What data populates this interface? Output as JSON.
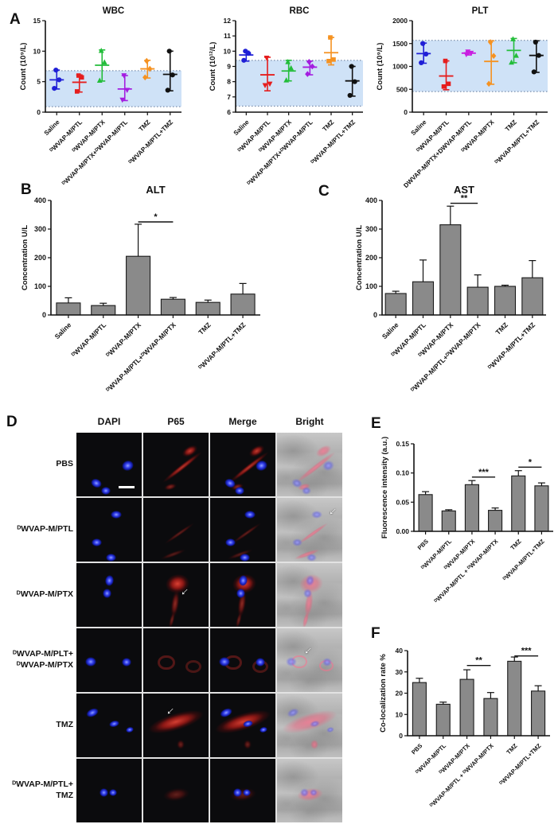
{
  "panels": {
    "A": {
      "letter": "A"
    },
    "B": {
      "letter": "B"
    },
    "C": {
      "letter": "C"
    },
    "D": {
      "letter": "D",
      "col_headers": [
        "DAPI",
        "P65",
        "Merge",
        "Bright"
      ],
      "row_labels": [
        "PBS",
        "ᴰWVAP-M/PTL",
        "ᴰWVAP-M/PTX",
        "ᴰWVAP-M/PLT+\nᴰWVAP-M/PTX",
        "TMZ",
        "ᴰWVAP-M/PTL+\nTMZ"
      ],
      "annotations": {
        "scale_bar": {
          "row": 0,
          "col": 0
        },
        "arrows": [
          {
            "row": 1,
            "col": 3
          },
          {
            "row": 2,
            "col": 1
          },
          {
            "row": 3,
            "col": 3
          },
          {
            "row": 4,
            "col": 1
          }
        ]
      }
    },
    "E": {
      "letter": "E"
    },
    "F": {
      "letter": "F"
    }
  },
  "colors": {
    "band_fill": "#cfe2f7",
    "band_line": "#60789a",
    "bar_fill": "#8a8a8a",
    "bar_stroke": "#1a1a1a",
    "axis": "#111111"
  },
  "chart_data": [
    {
      "panel": "A",
      "type": "scatter",
      "title": "WBC",
      "ylabel": "Count (10⁹/L)",
      "ylim": [
        0,
        15
      ],
      "yticks": [
        0,
        5,
        10,
        15
      ],
      "ytick_labels": [
        "0",
        "5",
        "10",
        "15"
      ],
      "normal_band": [
        0.9,
        6.8
      ],
      "categories": [
        "Saline",
        "ᴰWVAP-M/PTL",
        "ᴰWVAP-M/PTX",
        "ᴰWVAP-M/PTX+ᴰWVAP-M/PTL",
        "TMZ",
        "ᴰWVAP-M/PTL+TMZ"
      ],
      "series": [
        {
          "name": "Saline",
          "color": "#1f1fd6",
          "marker": "circle",
          "points": [
            3.9,
            5.3,
            6.9
          ],
          "mean": 5.3,
          "whisker_min": 3.8,
          "whisker_max": 6.9
        },
        {
          "name": "ᴰWVAP-M/PTL",
          "color": "#e51d1d",
          "marker": "square",
          "points": [
            3.4,
            5.7,
            6.0
          ],
          "mean": 4.9,
          "whisker_min": 3.3,
          "whisker_max": 6.1
        },
        {
          "name": "ᴰWVAP-M/PTX",
          "color": "#23bd3a",
          "marker": "triangle",
          "points": [
            5.2,
            8.2,
            10.1
          ],
          "mean": 7.7,
          "whisker_min": 5.1,
          "whisker_max": 10.2
        },
        {
          "name": "ᴰWVAP-M/PTX+ᴰWVAP-M/PTL",
          "color": "#a41de0",
          "marker": "triangle-down",
          "points": [
            2.0,
            3.6,
            6.0
          ],
          "mean": 3.8,
          "whisker_min": 1.9,
          "whisker_max": 6.0
        },
        {
          "name": "TMZ",
          "color": "#f59221",
          "marker": "diamond",
          "points": [
            5.7,
            7.1,
            8.4
          ],
          "mean": 7.1,
          "whisker_min": 5.6,
          "whisker_max": 8.5
        },
        {
          "name": "ᴰWVAP-M/PTL+TMZ",
          "color": "#111111",
          "marker": "circle",
          "points": [
            3.6,
            6.1,
            10.0
          ],
          "mean": 6.2,
          "whisker_min": 3.5,
          "whisker_max": 10.0
        }
      ]
    },
    {
      "panel": "A",
      "type": "scatter",
      "title": "RBC",
      "ylabel": "Count (10¹²/L)",
      "ylim": [
        6,
        12
      ],
      "yticks": [
        6,
        7,
        8,
        9,
        10,
        11,
        12
      ],
      "ytick_labels": [
        "6",
        "7",
        "8",
        "9",
        "10",
        "11",
        "12"
      ],
      "normal_band": [
        6.4,
        9.4
      ],
      "categories": [
        "Saline",
        "ᴰWVAP-M/PTL",
        "ᴰWVAP-M/PTX",
        "ᴰWVAP-M/PTX+ᴰWVAP-M/PTL",
        "TMZ",
        "ᴰWVAP-M/PTL+TMZ"
      ],
      "series": [
        {
          "name": "Saline",
          "color": "#1f1fd6",
          "marker": "circle",
          "points": [
            9.4,
            9.85,
            10.0
          ],
          "mean": 9.75,
          "whisker_min": 9.35,
          "whisker_max": 10.0
        },
        {
          "name": "ᴰWVAP-M/PTL",
          "color": "#e51d1d",
          "marker": "triangle-down",
          "points": [
            7.75,
            7.85,
            9.55
          ],
          "mean": 8.45,
          "whisker_min": 7.4,
          "whisker_max": 9.6
        },
        {
          "name": "ᴰWVAP-M/PTX",
          "color": "#23bd3a",
          "marker": "triangle",
          "points": [
            8.1,
            8.9,
            9.3
          ],
          "mean": 8.7,
          "whisker_min": 8.05,
          "whisker_max": 9.4
        },
        {
          "name": "ᴰWVAP-M/PTX+ᴰWVAP-M/PTL",
          "color": "#a41de0",
          "marker": "diamond",
          "points": [
            8.5,
            9.0,
            9.3
          ],
          "mean": 8.95,
          "whisker_min": 8.45,
          "whisker_max": 9.35
        },
        {
          "name": "TMZ",
          "color": "#f59221",
          "marker": "square",
          "points": [
            9.35,
            9.45,
            10.9
          ],
          "mean": 9.9,
          "whisker_min": 9.1,
          "whisker_max": 10.9
        },
        {
          "name": "ᴰWVAP-M/PTL+TMZ",
          "color": "#111111",
          "marker": "circle",
          "points": [
            7.1,
            8.0,
            9.0
          ],
          "mean": 8.05,
          "whisker_min": 7.05,
          "whisker_max": 9.0
        }
      ]
    },
    {
      "panel": "A",
      "type": "scatter",
      "title": "PLT",
      "ylabel": "Count (10⁹/L)",
      "ylim": [
        0,
        2000
      ],
      "yticks": [
        0,
        500,
        1000,
        1500,
        2000
      ],
      "ytick_labels": [
        "0",
        "500",
        "1000",
        "1500",
        "2000"
      ],
      "normal_band": [
        450,
        1570
      ],
      "categories": [
        "Saline",
        "ᴰWVAP-M/PTL",
        "DWVAP-M/PTX+DWVAP-M/PTL",
        "ᴰWVAP-M/PTX",
        "TMZ",
        "ᴰWVAP-M/PTL+TMZ"
      ],
      "series": [
        {
          "name": "Saline",
          "color": "#1f1fd6",
          "marker": "circle",
          "points": [
            1080,
            1270,
            1500
          ],
          "mean": 1280,
          "whisker_min": 1070,
          "whisker_max": 1510
        },
        {
          "name": "ᴰWVAP-M/PTL",
          "color": "#e51d1d",
          "marker": "square",
          "points": [
            560,
            620,
            1120
          ],
          "mean": 790,
          "whisker_min": 490,
          "whisker_max": 1120
        },
        {
          "name": "DWVAP-M/PTX+DWVAP-M/PTL",
          "color": "#c81ee0",
          "marker": "triangle-down",
          "points": [
            1260,
            1290,
            1320
          ],
          "mean": 1290,
          "whisker_min": 1250,
          "whisker_max": 1325
        },
        {
          "name": "ᴰWVAP-M/PTX",
          "color": "#f59221",
          "marker": "diamond",
          "points": [
            620,
            1230,
            1530
          ],
          "mean": 1110,
          "whisker_min": 610,
          "whisker_max": 1560
        },
        {
          "name": "TMZ",
          "color": "#23bd3a",
          "marker": "triangle",
          "points": [
            1090,
            1240,
            1600
          ],
          "mean": 1350,
          "whisker_min": 1080,
          "whisker_max": 1610
        },
        {
          "name": "ᴰWVAP-M/PTL+TMZ",
          "color": "#111111",
          "marker": "circle",
          "points": [
            880,
            1240,
            1530
          ],
          "mean": 1240,
          "whisker_min": 870,
          "whisker_max": 1560
        }
      ]
    },
    {
      "panel": "B",
      "type": "bar",
      "title": "ALT",
      "ylabel": "Concentration U/L",
      "ylim": [
        0,
        400
      ],
      "yticks": [
        0,
        100,
        200,
        300,
        400
      ],
      "ytick_labels": [
        "0",
        "100",
        "200",
        "300",
        "400"
      ],
      "categories": [
        "Saline",
        "ᴰWVAP-M/PTL",
        "ᴰWVAP-M/PTX",
        "ᴰWVAP-M/PTL+ᴰWVAP-M/PTX",
        "TMZ",
        "ᴰWVAP-M/PTL+TMZ"
      ],
      "values": [
        42,
        33,
        205,
        55,
        44,
        73
      ],
      "errors": [
        18,
        8,
        112,
        6,
        8,
        37
      ],
      "significance": [
        {
          "from": 2,
          "to": 3,
          "label": "*",
          "y": 325
        }
      ]
    },
    {
      "panel": "C",
      "type": "bar",
      "title": "AST",
      "ylabel": "Concentration U/L",
      "ylim": [
        0,
        400
      ],
      "yticks": [
        0,
        100,
        200,
        300,
        400
      ],
      "ytick_labels": [
        "0",
        "100",
        "200",
        "300",
        "400"
      ],
      "categories": [
        "Saline",
        "ᴰWVAP-M/PTL",
        "ᴰWVAP-M/PTX",
        "ᴰWVAP-M/PTL+ᴰWVAP-M/PTX",
        "TMZ",
        "ᴰWVAP-M/PTL+TMZ"
      ],
      "values": [
        75,
        116,
        315,
        97,
        100,
        130
      ],
      "errors": [
        8,
        76,
        65,
        43,
        4,
        60
      ],
      "significance": [
        {
          "from": 2,
          "to": 3,
          "label": "**",
          "y": 390
        }
      ]
    },
    {
      "panel": "E",
      "type": "bar",
      "title": "",
      "ylabel": "Fluorescence intensity (a.u.)",
      "ylim": [
        0,
        0.15
      ],
      "yticks": [
        0,
        0.05,
        0.1,
        0.15
      ],
      "ytick_labels": [
        "0.00",
        "0.05",
        "0.10",
        "0.15"
      ],
      "categories": [
        "PBS",
        "ᴰWVAP-M/PTL",
        "ᴰWVAP-M/PTX",
        "ᴰWVAP-M/PTL + ᴰWVAP-M/PTX",
        "TMZ",
        "ᴰWVAP-M/PTL+TMZ"
      ],
      "values": [
        0.063,
        0.035,
        0.08,
        0.036,
        0.095,
        0.078
      ],
      "errors": [
        0.005,
        0.002,
        0.007,
        0.004,
        0.009,
        0.005
      ],
      "significance": [
        {
          "from": 2,
          "to": 3,
          "label": "***",
          "y": 0.093
        },
        {
          "from": 4,
          "to": 5,
          "label": "*",
          "y": 0.11
        }
      ]
    },
    {
      "panel": "F",
      "type": "bar",
      "title": "",
      "ylabel": "Co-localization rate %",
      "ylim": [
        0,
        40
      ],
      "yticks": [
        0,
        10,
        20,
        30,
        40
      ],
      "ytick_labels": [
        "0",
        "10",
        "20",
        "30",
        "40"
      ],
      "categories": [
        "PBS",
        "ᴰWVAP-M/PTL",
        "ᴰWVAP-M/PTX",
        "ᴰWVAP-M/PTL + ᴰWVAP-M/PTX",
        "TMZ",
        "ᴰWVAP-M/PTL+TMZ"
      ],
      "values": [
        25,
        14.8,
        26.5,
        17.5,
        35,
        21
      ],
      "errors": [
        2,
        1,
        4.5,
        2.8,
        2,
        2.5
      ],
      "significance": [
        {
          "from": 2,
          "to": 3,
          "label": "**",
          "y": 33
        },
        {
          "from": 4,
          "to": 5,
          "label": "***",
          "y": 37.5
        }
      ]
    }
  ]
}
